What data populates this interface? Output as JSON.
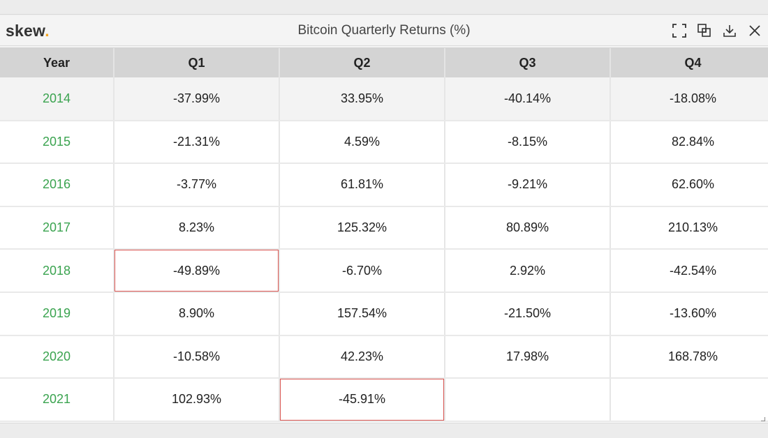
{
  "app": {
    "logo_text": "skew",
    "logo_dot": ".",
    "title": "Bitcoin Quarterly Returns (%)"
  },
  "toolbar": {
    "icons": [
      "fullscreen-icon",
      "copy-icon",
      "download-icon",
      "close-icon"
    ]
  },
  "colors": {
    "year_text": "#3aa34f",
    "highlight_border": "#d9534f",
    "header_bg": "#d4d4d4",
    "logo_dot": "#f5a623"
  },
  "table": {
    "headers": [
      "Year",
      "Q1",
      "Q2",
      "Q3",
      "Q4"
    ],
    "rows": [
      {
        "year": "2014",
        "q1": "-37.99%",
        "q2": "33.95%",
        "q3": "-40.14%",
        "q4": "-18.08%"
      },
      {
        "year": "2015",
        "q1": "-21.31%",
        "q2": "4.59%",
        "q3": "-8.15%",
        "q4": "82.84%"
      },
      {
        "year": "2016",
        "q1": "-3.77%",
        "q2": "61.81%",
        "q3": "-9.21%",
        "q4": "62.60%"
      },
      {
        "year": "2017",
        "q1": "8.23%",
        "q2": "125.32%",
        "q3": "80.89%",
        "q4": "210.13%"
      },
      {
        "year": "2018",
        "q1": "-49.89%",
        "q2": "-6.70%",
        "q3": "2.92%",
        "q4": "-42.54%"
      },
      {
        "year": "2019",
        "q1": "8.90%",
        "q2": "157.54%",
        "q3": "-21.50%",
        "q4": "-13.60%"
      },
      {
        "year": "2020",
        "q1": "-10.58%",
        "q2": "42.23%",
        "q3": "17.98%",
        "q4": "168.78%"
      },
      {
        "year": "2021",
        "q1": "102.93%",
        "q2": "-45.91%",
        "q3": "",
        "q4": ""
      }
    ],
    "highlighted_cells": [
      {
        "row": "2018",
        "col": "q1"
      },
      {
        "row": "2021",
        "col": "q2"
      }
    ]
  }
}
